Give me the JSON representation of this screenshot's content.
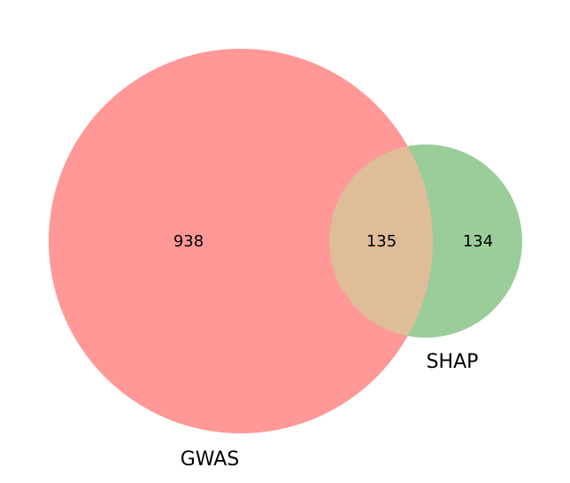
{
  "chart_data": {
    "type": "venn",
    "sets": [
      {
        "name": "GWAS",
        "only_count": "938",
        "color": "#ff9896"
      },
      {
        "name": "SHAP",
        "only_count": "134",
        "color": "#9acd9a"
      }
    ],
    "intersection": {
      "count": "135",
      "color": "#dfbd98"
    }
  }
}
